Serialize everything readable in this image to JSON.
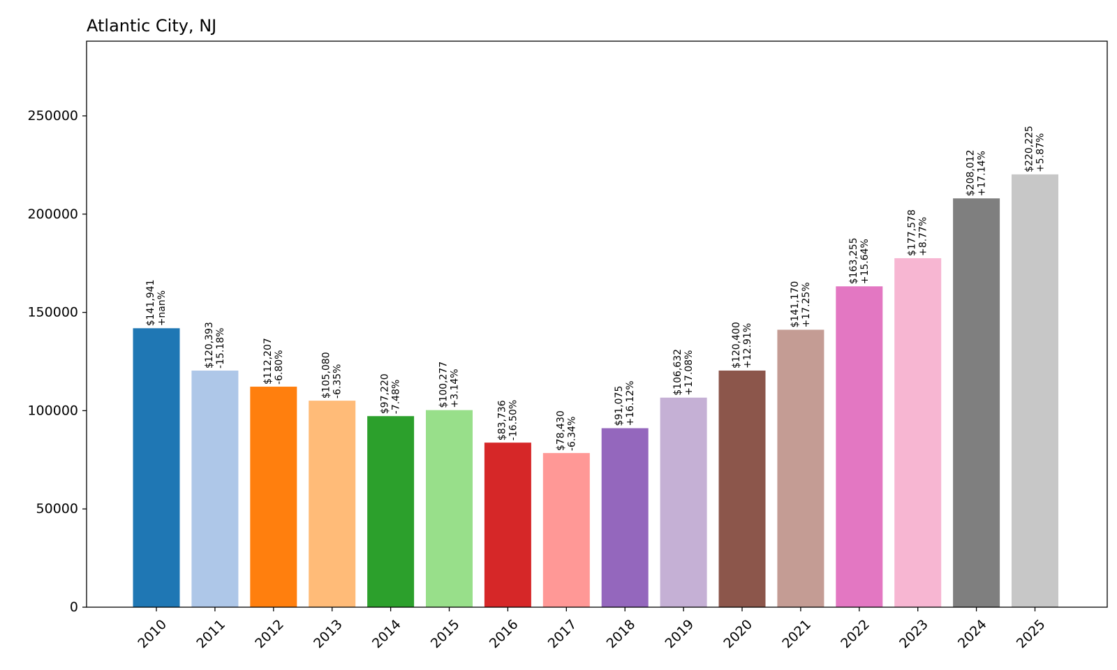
{
  "chart_data": {
    "type": "bar",
    "title": "Atlantic City, NJ",
    "xlabel": "",
    "ylabel": "",
    "ylim": [
      0,
      288000
    ],
    "yticks": [
      0,
      50000,
      100000,
      150000,
      200000,
      250000
    ],
    "ytick_labels": [
      "0",
      "50000",
      "100000",
      "150000",
      "200000",
      "250000"
    ],
    "categories": [
      "2010",
      "2011",
      "2012",
      "2013",
      "2014",
      "2015",
      "2016",
      "2017",
      "2018",
      "2019",
      "2020",
      "2021",
      "2022",
      "2023",
      "2024",
      "2025"
    ],
    "values": [
      141941,
      120393,
      112207,
      105080,
      97220,
      100277,
      83736,
      78430,
      91075,
      106632,
      120400,
      141170,
      163255,
      177578,
      208012,
      220225
    ],
    "value_labels": [
      "$141,941",
      "$120,393",
      "$112,207",
      "$105,080",
      "$97,220",
      "$100,277",
      "$83,736",
      "$78,430",
      "$91,075",
      "$106,632",
      "$120,400",
      "$141,170",
      "$163,255",
      "$177,578",
      "$208,012",
      "$220,225"
    ],
    "change_labels": [
      "+nan%",
      "-15.18%",
      "-6.80%",
      "-6.35%",
      "-7.48%",
      "+3.14%",
      "-16.50%",
      "-6.34%",
      "+16.12%",
      "+17.08%",
      "+12.91%",
      "+17.25%",
      "+15.64%",
      "+8.77%",
      "+17.14%",
      "+5.87%"
    ],
    "colors": [
      "#1f77b4",
      "#aec7e8",
      "#ff7f0e",
      "#ffbb78",
      "#2ca02c",
      "#98df8a",
      "#d62728",
      "#ff9896",
      "#9467bd",
      "#c5b0d5",
      "#8c564b",
      "#c49c94",
      "#e377c2",
      "#f7b6d2",
      "#7f7f7f",
      "#c7c7c7"
    ],
    "grid": false,
    "legend": "none"
  }
}
